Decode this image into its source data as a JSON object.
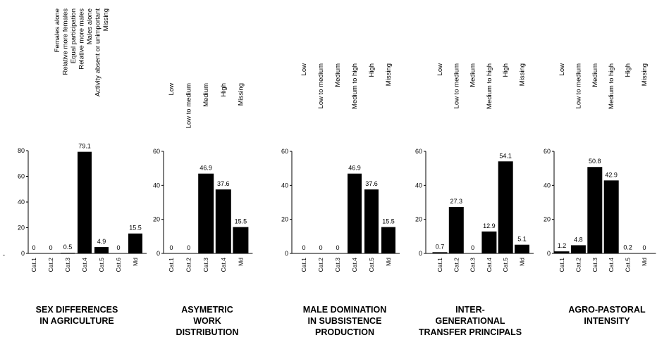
{
  "chart_data": [
    {
      "type": "bar",
      "title_lines": [
        "SEX DIFFERENCES",
        "IN AGRICULTURE"
      ],
      "legend_labels": [
        "Females alone",
        "Relative more females",
        "Equal participation",
        "Relative more males",
        "Males alone",
        "Activity absent or unimportant",
        "Missing"
      ],
      "categories": [
        "Cat.1",
        "Cat.2",
        "Cat.3",
        "Cat.4",
        "Cat.5",
        "Cat.6",
        "Md"
      ],
      "values": [
        0,
        0,
        0.5,
        79.1,
        4.9,
        0,
        15.5
      ],
      "value_labels": [
        "0",
        "0",
        "0.5",
        "79.1",
        "4.9",
        "0",
        "15.5"
      ],
      "ylim": [
        0,
        80
      ],
      "yticks": [
        "0",
        "20",
        "40",
        "60",
        "80"
      ],
      "left_mark": "-"
    },
    {
      "type": "bar",
      "title_lines": [
        "ASYMETRIC",
        "WORK",
        "DISTRIBUTION"
      ],
      "legend_labels": [
        "Low",
        "Low to medium",
        "Medium",
        "High",
        "Missing"
      ],
      "categories": [
        "Cat.1",
        "Cat.2",
        "Cat.3",
        "Cat.4",
        "Md"
      ],
      "values": [
        0,
        0,
        46.9,
        37.6,
        15.5
      ],
      "value_labels": [
        "0",
        "0",
        "46.9",
        "37.6",
        "15.5"
      ],
      "ylim": [
        0,
        60
      ],
      "yticks": [
        "0",
        "20",
        "40",
        "60"
      ]
    },
    {
      "type": "bar",
      "title_lines": [
        "MALE DOMINATION",
        "IN SUBSISTENCE",
        "PRODUCTION"
      ],
      "legend_labels": [
        "Low",
        "Low to medium",
        "Medium",
        "Medium to high",
        "High",
        "Missing"
      ],
      "categories": [
        "Cat.1",
        "Cat.2",
        "Cat.3",
        "Cat.4",
        "Cat.5",
        "Md"
      ],
      "values": [
        0,
        0,
        0,
        46.9,
        37.6,
        15.5
      ],
      "value_labels": [
        "0",
        "0",
        "0",
        "46.9",
        "37.6",
        "15.5"
      ],
      "ylim": [
        0,
        60
      ],
      "yticks": [
        "0",
        "20",
        "40",
        "60"
      ]
    },
    {
      "type": "bar",
      "title_lines": [
        "INTER-",
        "GENERATIONAL",
        "TRANSFER PRINCIPALS"
      ],
      "legend_labels": [
        "Low",
        "Low to medium",
        "Medium",
        "Medium to high",
        "High",
        "Missing"
      ],
      "categories": [
        "Cat.1",
        "Cat.2",
        "Cat.3",
        "Cat.4",
        "Cat.5",
        "Md"
      ],
      "values": [
        0.7,
        27.3,
        0,
        12.9,
        54.1,
        5.1
      ],
      "value_labels": [
        "0.7",
        "27.3",
        "0",
        "12.9",
        "54.1",
        "5.1"
      ],
      "ylim": [
        0,
        60
      ],
      "yticks": [
        "0",
        "20",
        "40",
        "60"
      ]
    },
    {
      "type": "bar",
      "title_lines": [
        "AGRO-PASTORAL",
        "INTENSITY"
      ],
      "legend_labels": [
        "Low",
        "Low to medium",
        "Medium",
        "Medium to high",
        "High",
        "Missing"
      ],
      "categories": [
        "Cat.1",
        "Cat.2",
        "Cat.3",
        "Cat.4",
        "Cat.5",
        "Md"
      ],
      "values": [
        1.2,
        4.8,
        50.8,
        42.9,
        0.2,
        0
      ],
      "value_labels": [
        "1.2",
        "4.8",
        "50.8",
        "42.9",
        "0.2",
        "0"
      ],
      "ylim": [
        0,
        60
      ],
      "yticks": [
        "0",
        "20",
        "40",
        "60"
      ]
    }
  ]
}
